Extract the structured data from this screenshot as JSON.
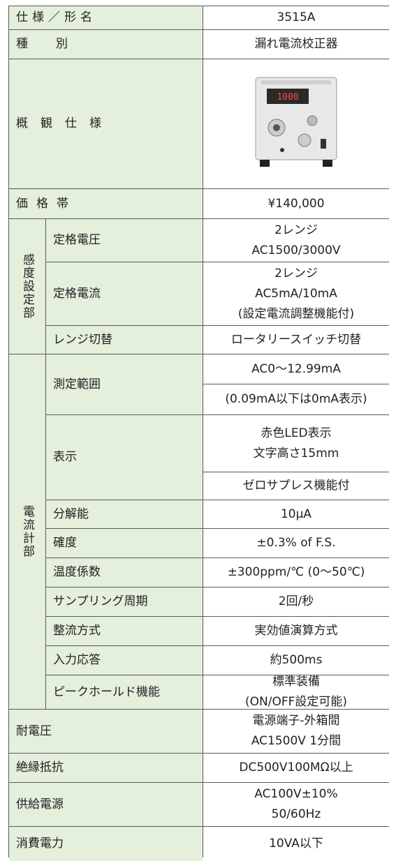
{
  "table": {
    "top": [
      {
        "label": "仕様／形名",
        "value": [
          [
            "3515A"
          ]
        ]
      },
      {
        "label": "種別",
        "value": [
          [
            "漏れ電流校正器"
          ]
        ]
      },
      {
        "label": "概観仕様"
      },
      {
        "label": "価格帯",
        "value": [
          [
            "¥140,000"
          ]
        ]
      }
    ],
    "groups": [
      {
        "label": "感度設定部",
        "items": [
          {
            "label": "定格電圧",
            "value": [
              [
                "2レンジ",
                "AC1500/3000V"
              ]
            ]
          },
          {
            "label": "定格電流",
            "value": [
              [
                "2レンジ",
                "AC5mA/10mA",
                "(設定電流調整機能付)"
              ]
            ]
          },
          {
            "label": "レンジ切替",
            "value": [
              [
                "ロータリースイッチ切替"
              ]
            ]
          }
        ]
      },
      {
        "label": "電流計部",
        "items": [
          {
            "label": "測定範囲",
            "value": [
              [
                "AC0〜12.99mA"
              ],
              [
                "(0.09mA以下は0mA表示)"
              ]
            ]
          },
          {
            "label": "表示",
            "value": [
              [
                "赤色LED表示",
                "文字高さ15mm"
              ],
              [
                "ゼロサプレス機能付"
              ]
            ]
          },
          {
            "label": "分解能",
            "value": [
              [
                "10μA"
              ]
            ]
          },
          {
            "label": "確度",
            "value": [
              [
                "±0.3% of F.S."
              ]
            ]
          },
          {
            "label": "温度係数",
            "value": [
              [
                "±300ppm/℃ (0〜50℃)"
              ]
            ]
          },
          {
            "label": "サンプリング周期",
            "value": [
              [
                "2回/秒"
              ]
            ]
          },
          {
            "label": "整流方式",
            "value": [
              [
                "実効値演算方式"
              ]
            ]
          },
          {
            "label": "入力応答",
            "value": [
              [
                "約500ms"
              ]
            ]
          },
          {
            "label": "ピークホールド機能",
            "value": [
              [
                "標準装備",
                "(ON/OFF設定可能)"
              ]
            ]
          }
        ]
      }
    ],
    "bottom": [
      {
        "label": "耐電圧",
        "value": [
          [
            "電源端子-外箱間",
            "AC1500V 1分間"
          ]
        ]
      },
      {
        "label": "絶縁抵抗",
        "value": [
          [
            "DC500V100MΩ以上"
          ]
        ]
      },
      {
        "label": "供給電源",
        "value": [
          [
            "AC100V±10%",
            "50/60Hz"
          ]
        ]
      },
      {
        "label": "消費電力",
        "value": [
          [
            "10VA以下"
          ]
        ]
      }
    ]
  }
}
